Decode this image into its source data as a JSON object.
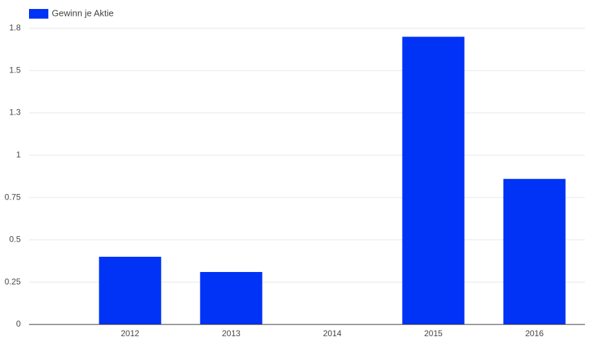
{
  "chart_data": {
    "type": "bar",
    "categories": [
      null,
      "2012",
      "2013",
      "2014",
      "2015",
      "2016"
    ],
    "series": [
      {
        "name": "Gewinn je Aktie",
        "color": "#0033f5",
        "values": [
          null,
          0.4,
          0.31,
          0,
          1.7,
          0.86
        ]
      }
    ],
    "ylim": [
      0,
      1.75
    ],
    "yticks": [
      0,
      0.25,
      0.5,
      0.75,
      1,
      {
        "value": 1.25,
        "label": "1.3"
      },
      1.5,
      {
        "value": 1.75,
        "label": "1.8"
      }
    ],
    "grid": true,
    "legend": "top-left"
  }
}
